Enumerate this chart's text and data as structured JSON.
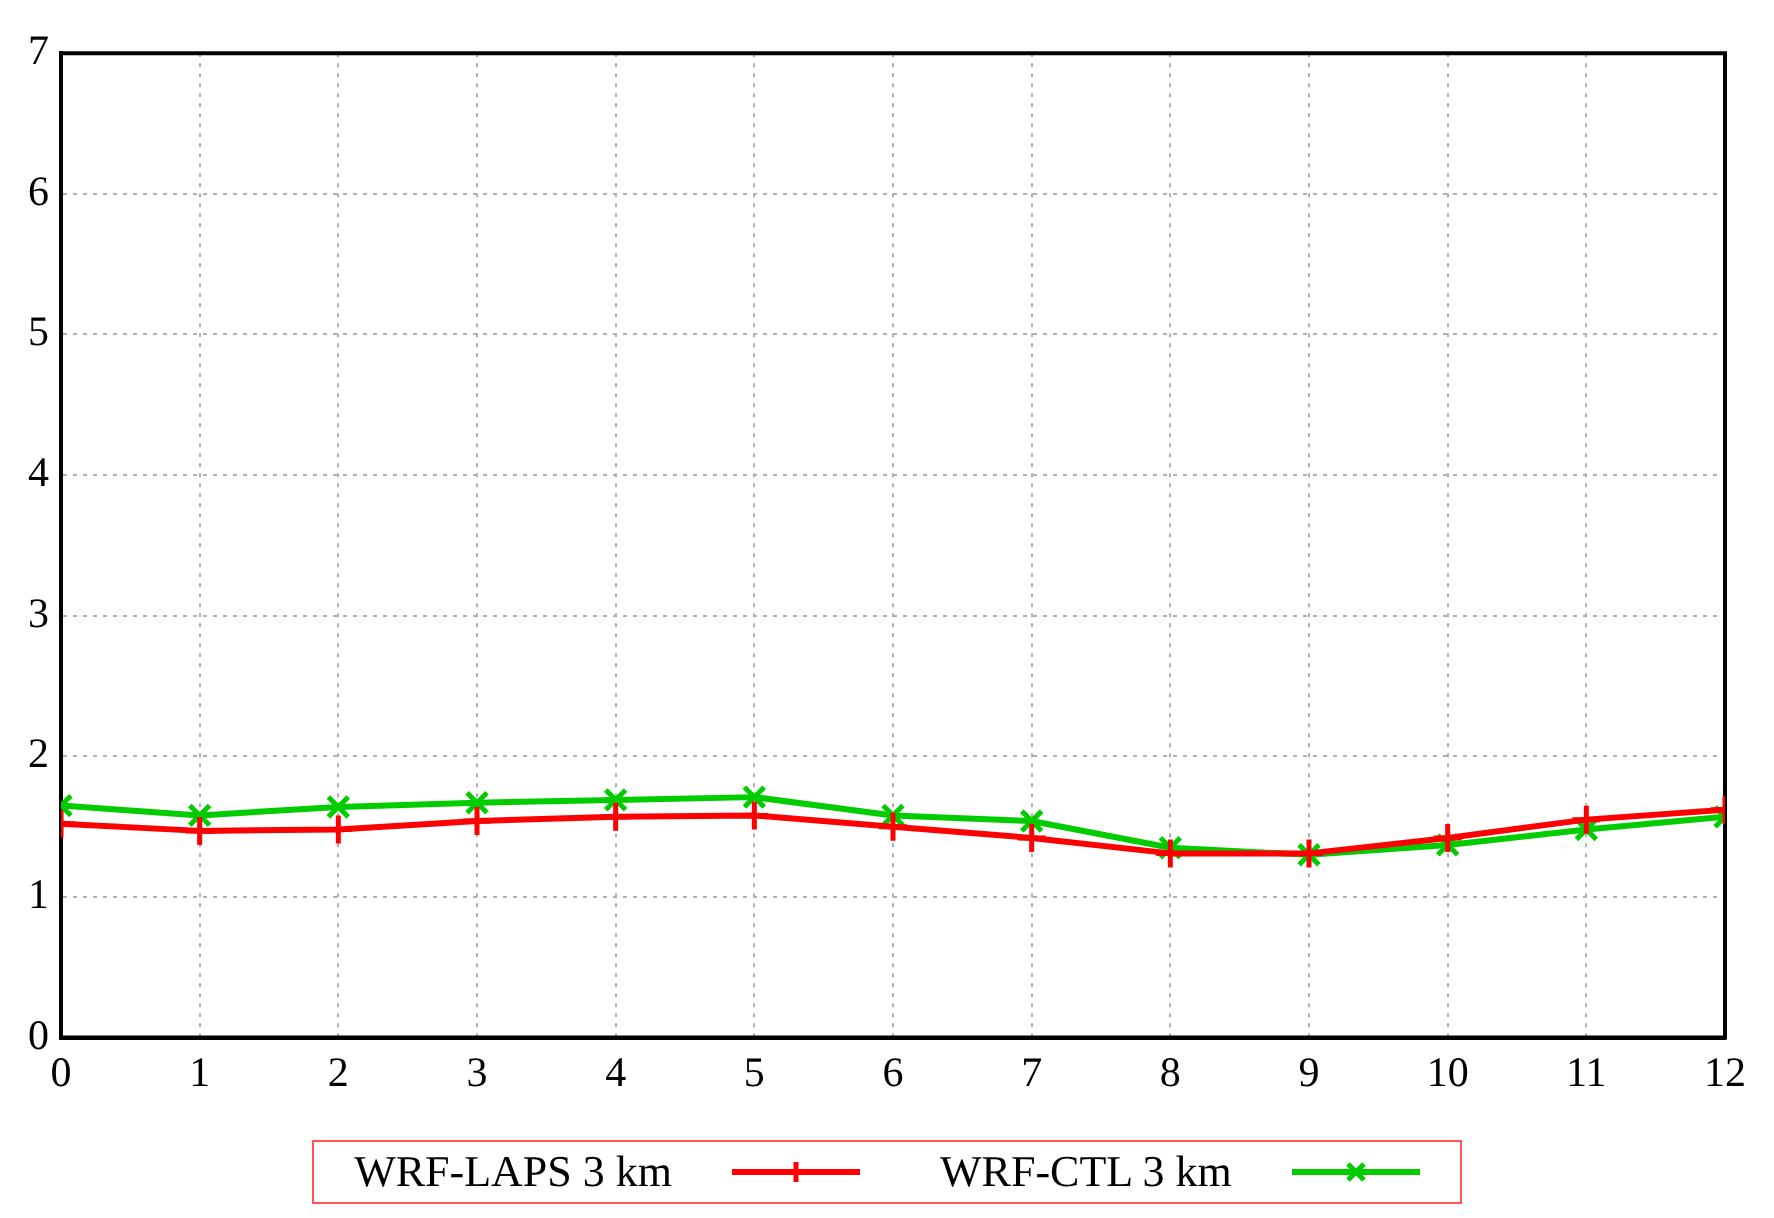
{
  "chart_data": {
    "type": "line",
    "x": [
      0,
      1,
      2,
      3,
      4,
      5,
      6,
      7,
      8,
      9,
      10,
      11,
      12
    ],
    "series": [
      {
        "name": "WRF-LAPS 3 km",
        "color": "#ff0000",
        "marker": "cross",
        "values": [
          1.52,
          1.47,
          1.48,
          1.54,
          1.57,
          1.58,
          1.5,
          1.42,
          1.31,
          1.31,
          1.42,
          1.55,
          1.62
        ]
      },
      {
        "name": "WRF-CTL 3 km",
        "color": "#00cc00",
        "marker": "cross",
        "values": [
          1.65,
          1.58,
          1.64,
          1.67,
          1.69,
          1.71,
          1.58,
          1.54,
          1.35,
          1.3,
          1.37,
          1.48,
          1.57
        ]
      }
    ],
    "xlim": [
      0,
      12
    ],
    "xticks": [
      0,
      1,
      2,
      3,
      4,
      5,
      6,
      7,
      8,
      9,
      10,
      11,
      12
    ],
    "ylim": [
      0,
      7
    ],
    "yticks": [
      0,
      1,
      2,
      3,
      4,
      5,
      6,
      7
    ],
    "grid": true,
    "legend": "bottom",
    "line_style": "solid"
  }
}
